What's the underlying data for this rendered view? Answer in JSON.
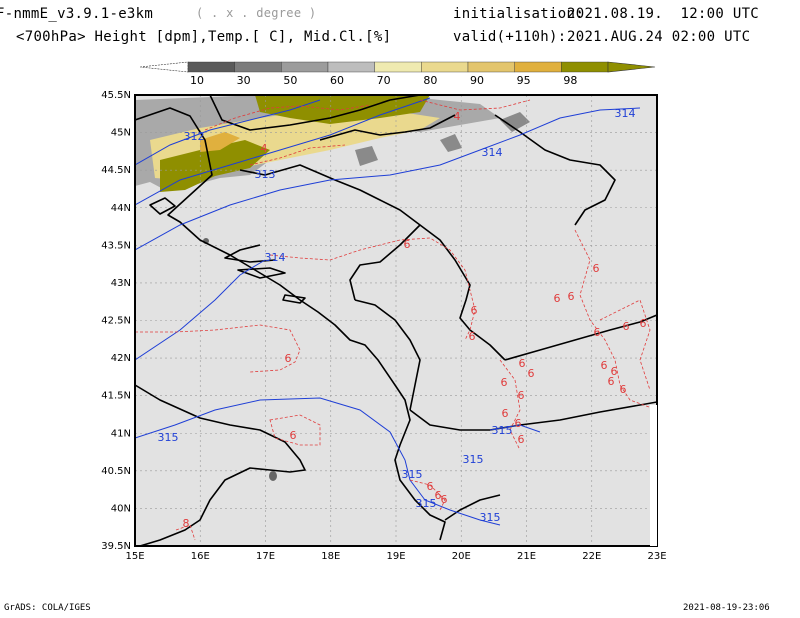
{
  "header": {
    "model": "F-nmmE_v3.9.1-e3km",
    "grid_note": "( . x . degree )",
    "init_label": "initialisation:",
    "init_value": "2021.08.19.  12:00 UTC",
    "subtitle": "<700hPa> Height [dpm],Temp.[ C], Mid.Cl.[%]",
    "valid_label": "valid(+110h):",
    "valid_value": "2021.AUG.24 02:00 UTC"
  },
  "colorbar": {
    "labels": [
      "10",
      "30",
      "50",
      "60",
      "70",
      "80",
      "90",
      "95",
      "98"
    ],
    "colors": [
      "#5a5a5a",
      "#7c7c7c",
      "#9c9c9c",
      "#bdbdbd",
      "#efeab0",
      "#ead98e",
      "#e3c56d",
      "#e0b03e",
      "#8f8f00"
    ]
  },
  "map": {
    "lat_labels": [
      "45.5N",
      "45N",
      "44.5N",
      "44N",
      "43.5N",
      "43N",
      "42.5N",
      "42N",
      "41.5N",
      "41N",
      "40.5N",
      "40N",
      "39.5N"
    ],
    "lon_labels": [
      "15E",
      "16E",
      "17E",
      "18E",
      "19E",
      "20E",
      "21E",
      "22E",
      "23E"
    ],
    "height_labels": [
      "312",
      "313",
      "314",
      "314",
      "314",
      "315",
      "315",
      "315",
      "315",
      "315",
      "315"
    ],
    "temp_labels": [
      "4",
      "4",
      "6",
      "6",
      "6",
      "6",
      "6",
      "6",
      "6",
      "6",
      "6",
      "6",
      "6",
      "6",
      "6",
      "6",
      "6",
      "6",
      "6",
      "6",
      "6",
      "6",
      "6",
      "6",
      "6",
      "6",
      "6",
      "8"
    ],
    "colors": {
      "height": "#1f3fd6",
      "temp": "#e03c3c",
      "land": "#e2e2e2",
      "border": "#000000",
      "grid": "#9a9a9a"
    }
  },
  "footer": {
    "left": "GrADS: COLA/IGES",
    "right": "2021-08-19-23:06"
  }
}
